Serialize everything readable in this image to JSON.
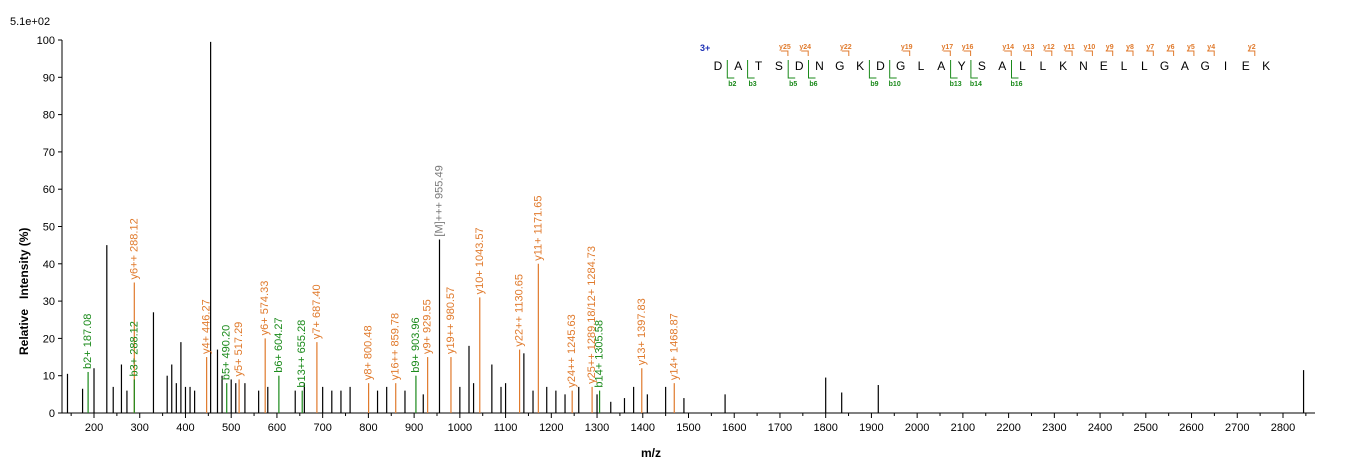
{
  "chart_data": {
    "type": "bar",
    "scale_label": "5.1e+02",
    "xlabel": "m/z",
    "ylabel": "Relative   Intensity (%)",
    "xlim": [
      130,
      2870
    ],
    "ylim": [
      0,
      100
    ],
    "x_ticks": [
      200,
      300,
      400,
      500,
      600,
      700,
      800,
      900,
      1000,
      1100,
      1200,
      1300,
      1400,
      1500,
      1600,
      1700,
      1800,
      1900,
      2000,
      2100,
      2200,
      2300,
      2400,
      2500,
      2600,
      2700,
      2800
    ],
    "y_ticks": [
      0,
      10,
      20,
      30,
      40,
      50,
      60,
      70,
      80,
      90,
      100
    ],
    "colors": {
      "plain": "#000000",
      "y_ion": "#e07a2c",
      "b_ion": "#1a8a1a",
      "precursor": "#7a7a7a",
      "charge": "#1b2fb5"
    },
    "plain_peaks": [
      [
        142,
        10.5
      ],
      [
        175,
        6.5
      ],
      [
        200,
        12
      ],
      [
        228,
        45
      ],
      [
        242,
        7
      ],
      [
        260,
        13
      ],
      [
        272,
        6
      ],
      [
        330,
        27
      ],
      [
        360,
        10
      ],
      [
        370,
        13
      ],
      [
        380,
        8
      ],
      [
        390,
        19
      ],
      [
        400,
        7
      ],
      [
        410,
        7
      ],
      [
        420,
        6
      ],
      [
        455,
        99.5
      ],
      [
        470,
        17
      ],
      [
        480,
        10
      ],
      [
        500,
        9
      ],
      [
        510,
        8
      ],
      [
        530,
        8
      ],
      [
        560,
        6
      ],
      [
        580,
        7
      ],
      [
        640,
        6
      ],
      [
        660,
        8
      ],
      [
        700,
        7
      ],
      [
        720,
        6
      ],
      [
        740,
        6
      ],
      [
        760,
        7
      ],
      [
        820,
        6
      ],
      [
        840,
        7
      ],
      [
        880,
        6
      ],
      [
        920,
        5
      ],
      [
        1000,
        7
      ],
      [
        1020,
        18
      ],
      [
        1030,
        8
      ],
      [
        1070,
        13
      ],
      [
        1090,
        7
      ],
      [
        1100,
        8
      ],
      [
        1140,
        16
      ],
      [
        1160,
        6
      ],
      [
        1190,
        7
      ],
      [
        1210,
        6
      ],
      [
        1230,
        5
      ],
      [
        1260,
        7
      ],
      [
        1300,
        5
      ],
      [
        1330,
        3
      ],
      [
        1360,
        4
      ],
      [
        1380,
        7
      ],
      [
        1410,
        5
      ],
      [
        1450,
        7
      ],
      [
        1490,
        4
      ],
      [
        1580,
        5
      ],
      [
        1800,
        9.5
      ],
      [
        1835,
        5.5
      ],
      [
        1915,
        7.5
      ],
      [
        2845,
        11.5
      ]
    ],
    "y_ion_peaks": [
      {
        "x": 288.12,
        "h": 35,
        "label": "y6++ 288.12"
      },
      {
        "x": 446.27,
        "h": 15,
        "label": "y4+ 446.27"
      },
      {
        "x": 517.29,
        "h": 9,
        "label": "y5+ 517.29"
      },
      {
        "x": 574.33,
        "h": 20,
        "label": "y6+ 574.33"
      },
      {
        "x": 687.4,
        "h": 19,
        "label": "y7+ 687.40"
      },
      {
        "x": 800.48,
        "h": 8,
        "label": "y8+ 800.48"
      },
      {
        "x": 859.78,
        "h": 8,
        "label": "y16++ 859.78"
      },
      {
        "x": 929.55,
        "h": 15,
        "label": "y9+ 929.55"
      },
      {
        "x": 980.57,
        "h": 15,
        "label": "y19++ 980.57"
      },
      {
        "x": 1043.57,
        "h": 31,
        "label": "y10+ 1043.57"
      },
      {
        "x": 1130.65,
        "h": 17,
        "label": "y22++ 1130.65"
      },
      {
        "x": 1171.65,
        "h": 40,
        "label": "y11+ 1171.65"
      },
      {
        "x": 1245.63,
        "h": 6,
        "label": "y24++ 1245.63"
      },
      {
        "x": 1289.18,
        "h": 7,
        "label": "y25++ 1289.18/12+ 1284.73"
      },
      {
        "x": 1397.83,
        "h": 12,
        "label": "y13+ 1397.83"
      },
      {
        "x": 1468.87,
        "h": 8,
        "label": "y14+ 1468.87"
      }
    ],
    "b_ion_peaks": [
      {
        "x": 187.08,
        "h": 11,
        "label": "b2+ 187.08"
      },
      {
        "x": 288.12,
        "h": 9,
        "label": "b3+ 288.12"
      },
      {
        "x": 490.2,
        "h": 8,
        "label": "b5+ 490.20"
      },
      {
        "x": 604.27,
        "h": 10,
        "label": "b6+ 604.27"
      },
      {
        "x": 655.28,
        "h": 6,
        "label": "b13++ 655.28"
      },
      {
        "x": 903.96,
        "h": 10,
        "label": "b9+ 903.96"
      },
      {
        "x": 1305.58,
        "h": 6,
        "label": "b14+ 1305.58"
      }
    ],
    "precursor_peak": {
      "x": 955.49,
      "h": 46.5,
      "label": "[M]+++ 955.49"
    },
    "sequence": {
      "charge": "3+",
      "letters": [
        "D",
        "A",
        "T",
        "S",
        "D",
        "N",
        "G",
        "K",
        "D",
        "G",
        "L",
        "A",
        "Y",
        "S",
        "A",
        "L",
        "L",
        "K",
        "N",
        "E",
        "L",
        "L",
        "G",
        "A",
        "G",
        "I",
        "E",
        "K"
      ],
      "y_tags": [
        "",
        "",
        "",
        "y25",
        "y24",
        "",
        "y22",
        "",
        "",
        "y19",
        "",
        "y17",
        "y16",
        "",
        "y14",
        "y13",
        "y12",
        "y11",
        "y10",
        "y9",
        "y8",
        "y7",
        "y6",
        "y5",
        "y4",
        "",
        "y2",
        ""
      ],
      "b_tags": [
        "",
        "b2",
        "b3",
        "",
        "b5",
        "b6",
        "",
        "",
        "b9",
        "b10",
        "",
        "",
        "b13",
        "b14",
        "",
        "b16",
        "",
        "",
        "",
        "",
        "",
        "",
        "",
        "",
        "",
        "",
        "",
        ""
      ]
    }
  }
}
